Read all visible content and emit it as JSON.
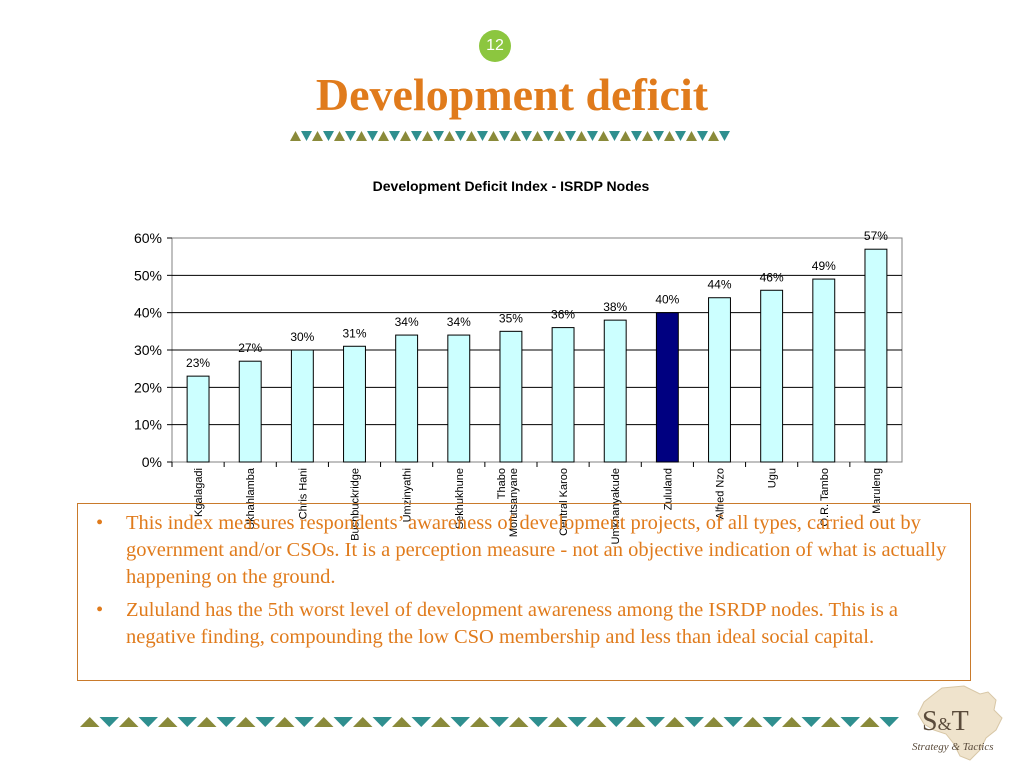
{
  "slide": {
    "page_number": "12",
    "title": "Development deficit"
  },
  "colors": {
    "title": "#e07b1c",
    "badge": "#8cc63f",
    "bar_fill": "#ccffff",
    "highlight_bar": "#000080",
    "triangle_olive": "#8a8a3a",
    "triangle_teal": "#2f8f8f"
  },
  "chart_data": {
    "type": "bar",
    "title": "Development Deficit Index - ISRDP Nodes",
    "categories": [
      "Kgalagadi",
      "Ukhahlamba",
      "Chris Hani",
      "Bushbuckridge",
      "Umzinyathi",
      "Sekhukhune",
      "Thabo Mofutsanyane",
      "Central Karoo",
      "Umkhanyakude",
      "Zululand",
      "Alfred Nzo",
      "Ugu",
      "O.R. Tambo",
      "Maruleng"
    ],
    "values": [
      23,
      27,
      30,
      31,
      34,
      34,
      35,
      36,
      38,
      40,
      44,
      46,
      49,
      57
    ],
    "value_labels": [
      "23%",
      "27%",
      "30%",
      "31%",
      "34%",
      "34%",
      "35%",
      "36%",
      "38%",
      "40%",
      "44%",
      "46%",
      "49%",
      "57%"
    ],
    "highlight_category": "Zululand",
    "ylim": [
      0,
      60
    ],
    "yticks": [
      "0%",
      "10%",
      "20%",
      "30%",
      "40%",
      "50%",
      "60%"
    ],
    "xlabel": "",
    "ylabel": "",
    "grid": true,
    "legend": "none"
  },
  "bullets": [
    "This index measures respondents’ awareness of development projects, of all types, carried out by government and/or CSOs. It is a perception measure - not an objective indication of what is actually happening on the ground.",
    "Zululand has the 5th worst level of development awareness among the ISRDP nodes. This is a negative finding, compounding the low CSO membership and less than ideal social capital."
  ],
  "bullet_symbol": "•",
  "logo": {
    "brand_s": "S",
    "brand_amp": "&",
    "brand_t": "T",
    "tagline": "Strategy & Tactics"
  }
}
